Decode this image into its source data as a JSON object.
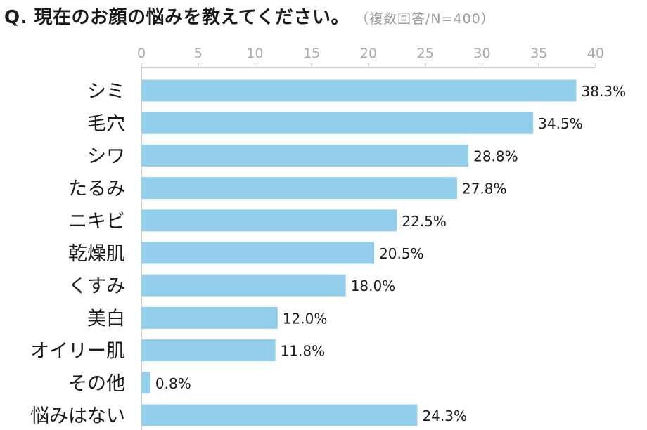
{
  "header": {
    "title": "Q. 現在のお顔の悩みを教えてください。",
    "subtitle": "（複数回答/N=400）"
  },
  "colors": {
    "bar": "#93cfea",
    "axis": "#bbbbbb",
    "tick_label": "#a8a8a8",
    "category_label": "#1a1a1a",
    "value_label": "#1a1a1a"
  },
  "chart_data": {
    "type": "bar",
    "orientation": "horizontal",
    "title": "Q. 現在のお顔の悩みを教えてください。",
    "subtitle": "（複数回答/N=400）",
    "xlim": [
      0,
      40
    ],
    "xticks": [
      0,
      5,
      10,
      15,
      20,
      25,
      30,
      35,
      40
    ],
    "axis_position": "top",
    "grid": false,
    "value_suffix": "%",
    "categories": [
      "シミ",
      "毛穴",
      "シワ",
      "たるみ",
      "ニキビ",
      "乾燥肌",
      "くすみ",
      "美白",
      "オイリー肌",
      "その他",
      "悩みはない"
    ],
    "values": [
      38.3,
      34.5,
      28.8,
      27.8,
      22.5,
      20.5,
      18.0,
      12.0,
      11.8,
      0.8,
      24.3
    ],
    "value_labels": [
      "38.3%",
      "34.5%",
      "28.8%",
      "27.8%",
      "22.5%",
      "20.5%",
      "18.0%",
      "12.0%",
      "11.8%",
      "0.8%",
      "24.3%"
    ]
  }
}
